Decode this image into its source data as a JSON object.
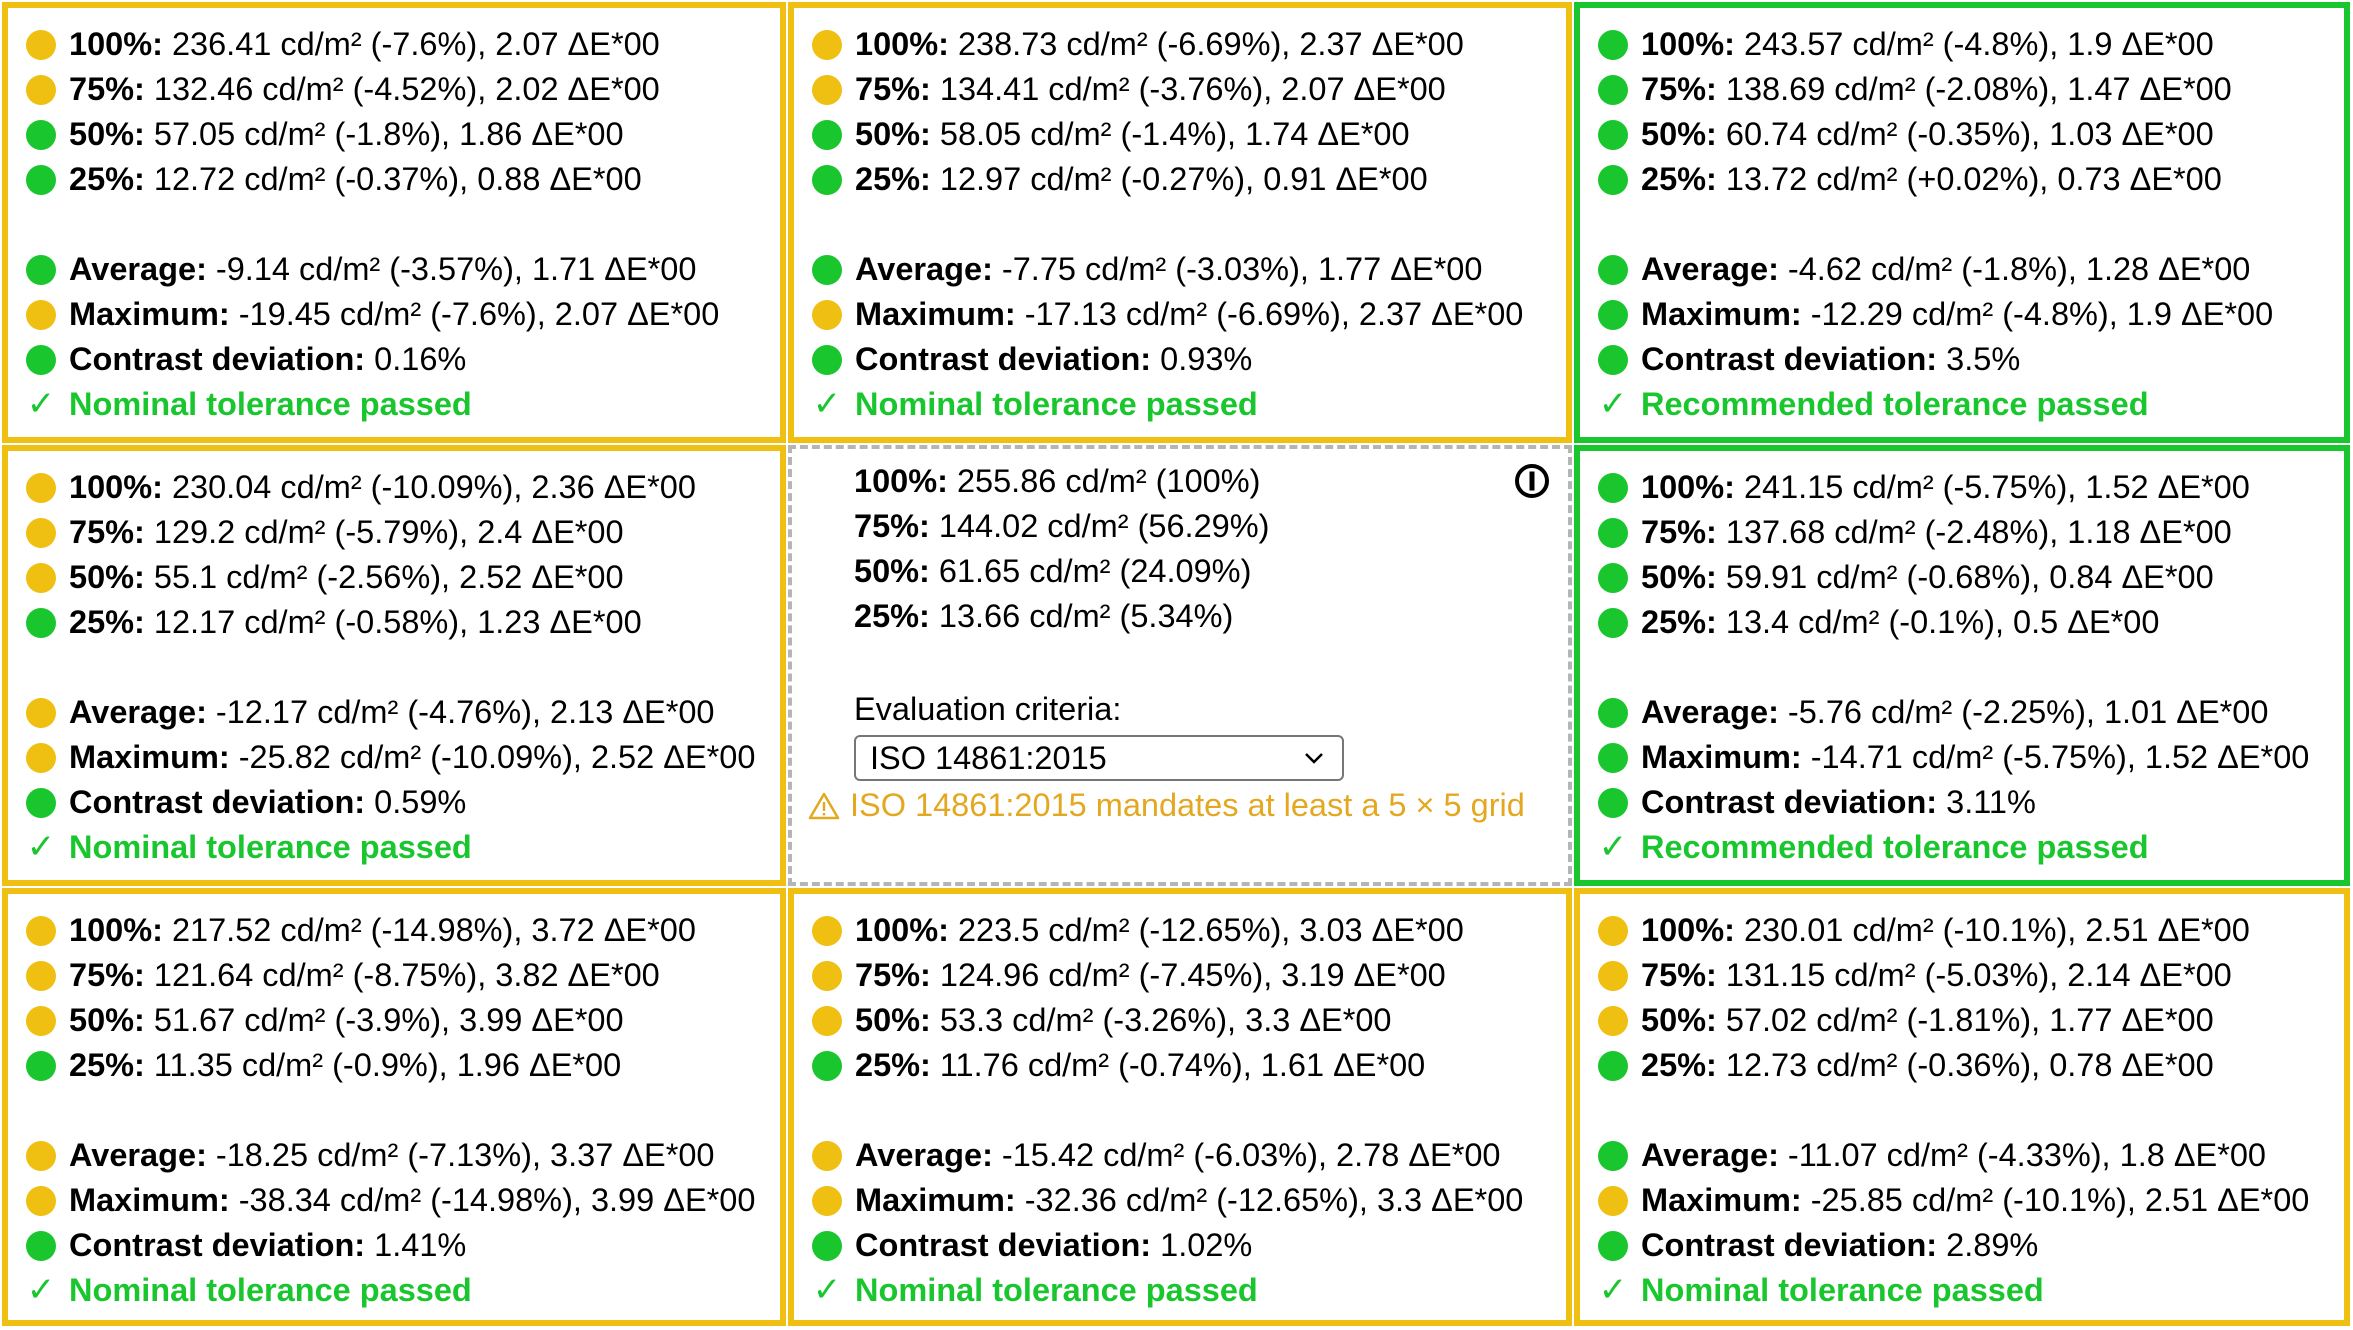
{
  "colors": {
    "warning": "#efbf11",
    "good": "#19c62e",
    "center_border": "#b5b5b5",
    "warning_text": "#e3a820"
  },
  "cells": {
    "tl": {
      "status": "warning",
      "p100": {
        "label": "100%:",
        "value": "236.41 cd/m² (-7.6%), 2.07 ΔE*00",
        "status": "yellow"
      },
      "p75": {
        "label": "75%:",
        "value": "132.46 cd/m² (-4.52%), 2.02 ΔE*00",
        "status": "yellow"
      },
      "p50": {
        "label": "50%:",
        "value": "57.05 cd/m² (-1.8%), 1.86 ΔE*00",
        "status": "green"
      },
      "p25": {
        "label": "25%:",
        "value": "12.72 cd/m² (-0.37%), 0.88 ΔE*00",
        "status": "green"
      },
      "average": {
        "label": "Average:",
        "value": "-9.14 cd/m² (-3.57%), 1.71 ΔE*00",
        "status": "green"
      },
      "maximum": {
        "label": "Maximum:",
        "value": "-19.45 cd/m² (-7.6%), 2.07 ΔE*00",
        "status": "yellow"
      },
      "contrast": {
        "label": "Contrast deviation:",
        "value": "0.16%",
        "status": "green"
      },
      "result": "Nominal tolerance passed"
    },
    "tm": {
      "status": "warning",
      "p100": {
        "label": "100%:",
        "value": "238.73 cd/m² (-6.69%), 2.37 ΔE*00",
        "status": "yellow"
      },
      "p75": {
        "label": "75%:",
        "value": "134.41 cd/m² (-3.76%), 2.07 ΔE*00",
        "status": "yellow"
      },
      "p50": {
        "label": "50%:",
        "value": "58.05 cd/m² (-1.4%), 1.74 ΔE*00",
        "status": "green"
      },
      "p25": {
        "label": "25%:",
        "value": "12.97 cd/m² (-0.27%), 0.91 ΔE*00",
        "status": "green"
      },
      "average": {
        "label": "Average:",
        "value": "-7.75 cd/m² (-3.03%), 1.77 ΔE*00",
        "status": "green"
      },
      "maximum": {
        "label": "Maximum:",
        "value": "-17.13 cd/m² (-6.69%), 2.37 ΔE*00",
        "status": "yellow"
      },
      "contrast": {
        "label": "Contrast deviation:",
        "value": "0.93%",
        "status": "green"
      },
      "result": "Nominal tolerance passed"
    },
    "tr": {
      "status": "good",
      "p100": {
        "label": "100%:",
        "value": "243.57 cd/m² (-4.8%), 1.9 ΔE*00",
        "status": "green"
      },
      "p75": {
        "label": "75%:",
        "value": "138.69 cd/m² (-2.08%), 1.47 ΔE*00",
        "status": "green"
      },
      "p50": {
        "label": "50%:",
        "value": "60.74 cd/m² (-0.35%), 1.03 ΔE*00",
        "status": "green"
      },
      "p25": {
        "label": "25%:",
        "value": "13.72 cd/m² (+0.02%), 0.73 ΔE*00",
        "status": "green"
      },
      "average": {
        "label": "Average:",
        "value": "-4.62 cd/m² (-1.8%), 1.28 ΔE*00",
        "status": "green"
      },
      "maximum": {
        "label": "Maximum:",
        "value": "-12.29 cd/m² (-4.8%), 1.9 ΔE*00",
        "status": "green"
      },
      "contrast": {
        "label": "Contrast deviation:",
        "value": "3.5%",
        "status": "green"
      },
      "result": "Recommended tolerance passed"
    },
    "ml": {
      "status": "warning",
      "p100": {
        "label": "100%:",
        "value": "230.04 cd/m² (-10.09%), 2.36 ΔE*00",
        "status": "yellow"
      },
      "p75": {
        "label": "75%:",
        "value": "129.2 cd/m² (-5.79%), 2.4 ΔE*00",
        "status": "yellow"
      },
      "p50": {
        "label": "50%:",
        "value": "55.1 cd/m² (-2.56%), 2.52 ΔE*00",
        "status": "yellow"
      },
      "p25": {
        "label": "25%:",
        "value": "12.17 cd/m² (-0.58%), 1.23 ΔE*00",
        "status": "green"
      },
      "average": {
        "label": "Average:",
        "value": "-12.17 cd/m² (-4.76%), 2.13 ΔE*00",
        "status": "yellow"
      },
      "maximum": {
        "label": "Maximum:",
        "value": "-25.82 cd/m² (-10.09%), 2.52 ΔE*00",
        "status": "yellow"
      },
      "contrast": {
        "label": "Contrast deviation:",
        "value": "0.59%",
        "status": "green"
      },
      "result": "Nominal tolerance passed"
    },
    "mm": {
      "p100": {
        "label": "100%:",
        "value": "255.86 cd/m² (100%)"
      },
      "p75": {
        "label": "75%:",
        "value": "144.02 cd/m² (56.29%)"
      },
      "p50": {
        "label": "50%:",
        "value": "61.65 cd/m² (24.09%)"
      },
      "p25": {
        "label": "25%:",
        "value": "13.66 cd/m² (5.34%)"
      },
      "eval_label": "Evaluation criteria:",
      "eval_selected": "ISO 14861:2015",
      "warning": "ISO 14861:2015 mandates at least a 5 × 5 grid"
    },
    "mr": {
      "status": "good",
      "p100": {
        "label": "100%:",
        "value": "241.15 cd/m² (-5.75%), 1.52 ΔE*00",
        "status": "green"
      },
      "p75": {
        "label": "75%:",
        "value": "137.68 cd/m² (-2.48%), 1.18 ΔE*00",
        "status": "green"
      },
      "p50": {
        "label": "50%:",
        "value": "59.91 cd/m² (-0.68%), 0.84 ΔE*00",
        "status": "green"
      },
      "p25": {
        "label": "25%:",
        "value": "13.4 cd/m² (-0.1%), 0.5 ΔE*00",
        "status": "green"
      },
      "average": {
        "label": "Average:",
        "value": "-5.76 cd/m² (-2.25%), 1.01 ΔE*00",
        "status": "green"
      },
      "maximum": {
        "label": "Maximum:",
        "value": "-14.71 cd/m² (-5.75%), 1.52 ΔE*00",
        "status": "green"
      },
      "contrast": {
        "label": "Contrast deviation:",
        "value": "3.11%",
        "status": "green"
      },
      "result": "Recommended tolerance passed"
    },
    "bl": {
      "status": "warning",
      "p100": {
        "label": "100%:",
        "value": "217.52 cd/m² (-14.98%), 3.72 ΔE*00",
        "status": "yellow"
      },
      "p75": {
        "label": "75%:",
        "value": "121.64 cd/m² (-8.75%), 3.82 ΔE*00",
        "status": "yellow"
      },
      "p50": {
        "label": "50%:",
        "value": "51.67 cd/m² (-3.9%), 3.99 ΔE*00",
        "status": "yellow"
      },
      "p25": {
        "label": "25%:",
        "value": "11.35 cd/m² (-0.9%), 1.96 ΔE*00",
        "status": "green"
      },
      "average": {
        "label": "Average:",
        "value": "-18.25 cd/m² (-7.13%), 3.37 ΔE*00",
        "status": "yellow"
      },
      "maximum": {
        "label": "Maximum:",
        "value": "-38.34 cd/m² (-14.98%), 3.99 ΔE*00",
        "status": "yellow"
      },
      "contrast": {
        "label": "Contrast deviation:",
        "value": "1.41%",
        "status": "green"
      },
      "result": "Nominal tolerance passed"
    },
    "bm": {
      "status": "warning",
      "p100": {
        "label": "100%:",
        "value": "223.5 cd/m² (-12.65%), 3.03 ΔE*00",
        "status": "yellow"
      },
      "p75": {
        "label": "75%:",
        "value": "124.96 cd/m² (-7.45%), 3.19 ΔE*00",
        "status": "yellow"
      },
      "p50": {
        "label": "50%:",
        "value": "53.3 cd/m² (-3.26%), 3.3 ΔE*00",
        "status": "yellow"
      },
      "p25": {
        "label": "25%:",
        "value": "11.76 cd/m² (-0.74%), 1.61 ΔE*00",
        "status": "green"
      },
      "average": {
        "label": "Average:",
        "value": "-15.42 cd/m² (-6.03%), 2.78 ΔE*00",
        "status": "yellow"
      },
      "maximum": {
        "label": "Maximum:",
        "value": "-32.36 cd/m² (-12.65%), 3.3 ΔE*00",
        "status": "yellow"
      },
      "contrast": {
        "label": "Contrast deviation:",
        "value": "1.02%",
        "status": "green"
      },
      "result": "Nominal tolerance passed"
    },
    "br": {
      "status": "warning",
      "p100": {
        "label": "100%:",
        "value": "230.01 cd/m² (-10.1%), 2.51 ΔE*00",
        "status": "yellow"
      },
      "p75": {
        "label": "75%:",
        "value": "131.15 cd/m² (-5.03%), 2.14 ΔE*00",
        "status": "yellow"
      },
      "p50": {
        "label": "50%:",
        "value": "57.02 cd/m² (-1.81%), 1.77 ΔE*00",
        "status": "yellow"
      },
      "p25": {
        "label": "25%:",
        "value": "12.73 cd/m² (-0.36%), 0.78 ΔE*00",
        "status": "green"
      },
      "average": {
        "label": "Average:",
        "value": "-11.07 cd/m² (-4.33%), 1.8 ΔE*00",
        "status": "green"
      },
      "maximum": {
        "label": "Maximum:",
        "value": "-25.85 cd/m² (-10.1%), 2.51 ΔE*00",
        "status": "yellow"
      },
      "contrast": {
        "label": "Contrast deviation:",
        "value": "2.89%",
        "status": "green"
      },
      "result": "Nominal tolerance passed"
    }
  }
}
